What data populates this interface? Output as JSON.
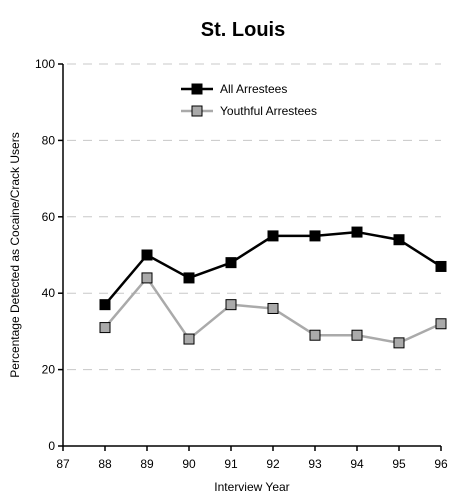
{
  "chart_data": {
    "type": "line",
    "title": "St. Louis",
    "xlabel": "Interview Year",
    "ylabel": "Percentage Detected as Cocaine/Crack Users",
    "x_ticks": [
      "87",
      "88",
      "89",
      "90",
      "91",
      "92",
      "93",
      "94",
      "95",
      "96"
    ],
    "y_ticks": [
      "0",
      "20",
      "40",
      "60",
      "80",
      "100"
    ],
    "xlim": [
      87,
      96
    ],
    "ylim": [
      0,
      100
    ],
    "grid": "horizontal-dashed",
    "legend_position": "top-center",
    "series": [
      {
        "name": "All Arrestees",
        "color": "#000000",
        "marker_fill": "#000000",
        "x": [
          88,
          89,
          90,
          91,
          92,
          93,
          94,
          95,
          96
        ],
        "values": [
          37,
          50,
          44,
          48,
          55,
          55,
          56,
          54,
          47
        ]
      },
      {
        "name": "Youthful Arrestees",
        "color": "#aaaaaa",
        "marker_fill": "#aaaaaa",
        "x": [
          88,
          89,
          90,
          91,
          92,
          93,
          94,
          95,
          96
        ],
        "values": [
          31,
          44,
          28,
          37,
          36,
          29,
          29,
          27,
          32
        ]
      }
    ]
  }
}
